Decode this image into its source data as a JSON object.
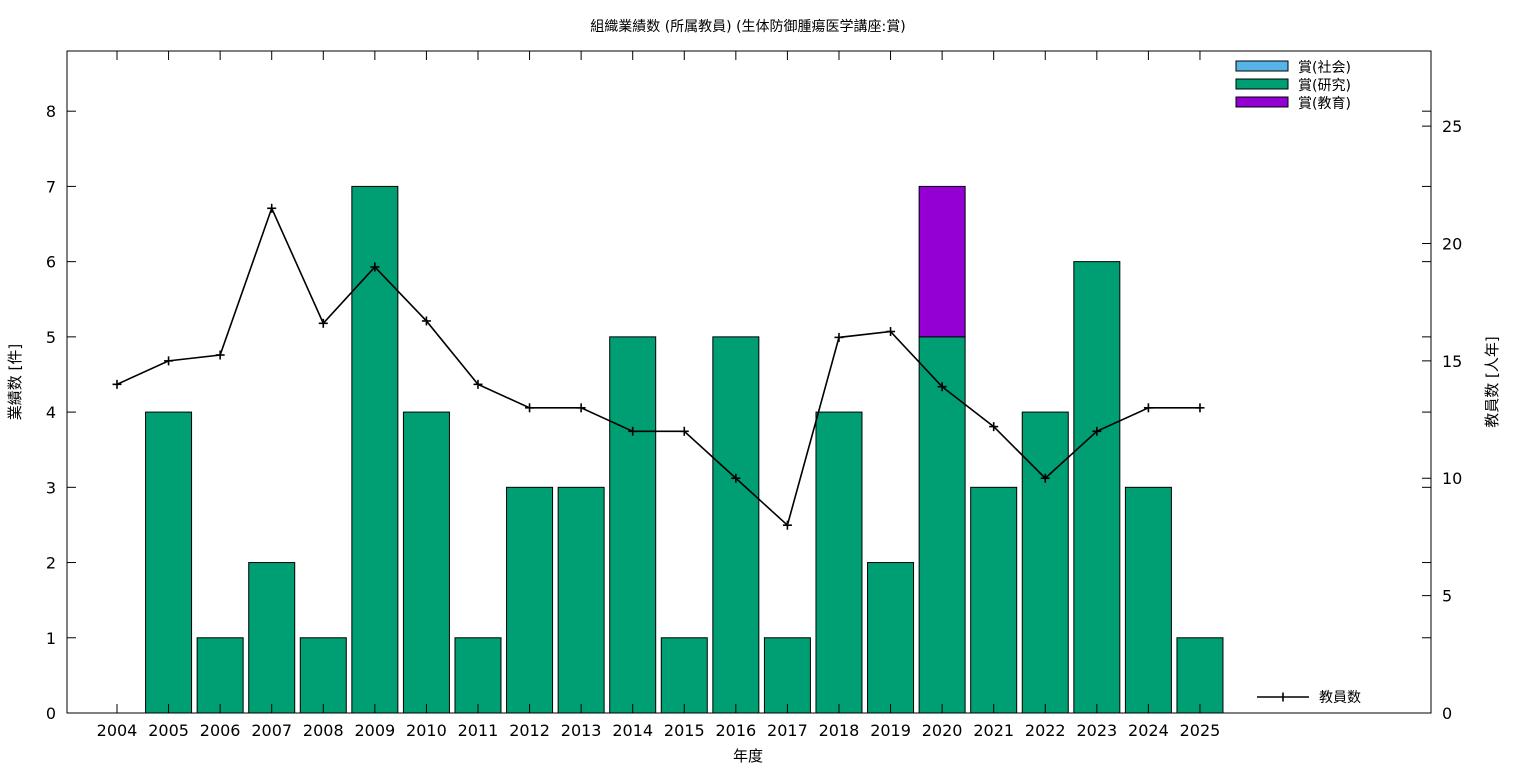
{
  "chart_data": {
    "type": "bar",
    "title": "組織業績数 (所属教員) (生体防御腫瘍医学講座:賞)",
    "xlabel": "年度",
    "ylabel": "業績数 [件]",
    "y2label": "教員数 [人年]",
    "categories": [
      "2004",
      "2005",
      "2006",
      "2007",
      "2008",
      "2009",
      "2010",
      "2011",
      "2012",
      "2013",
      "2014",
      "2015",
      "2016",
      "2017",
      "2018",
      "2019",
      "2020",
      "2021",
      "2022",
      "2023",
      "2024",
      "2025"
    ],
    "ylim": [
      0,
      8.8
    ],
    "y2lim": [
      0,
      28.2
    ],
    "yticks": [
      0,
      1,
      2,
      3,
      4,
      5,
      6,
      7,
      8
    ],
    "y2ticks": [
      0,
      5,
      10,
      15,
      20,
      25
    ],
    "stacked": true,
    "series": [
      {
        "name": "賞(社会)",
        "color": "#56b4e9",
        "values": [
          0,
          0,
          0,
          0,
          0,
          0,
          0,
          0,
          0,
          0,
          0,
          0,
          0,
          0,
          0,
          0,
          0,
          0,
          0,
          0,
          0,
          0
        ]
      },
      {
        "name": "賞(研究)",
        "color": "#009e73",
        "values": [
          0,
          4,
          1,
          2,
          1,
          7,
          4,
          1,
          3,
          3,
          5,
          1,
          5,
          1,
          4,
          2,
          5,
          3,
          4,
          6,
          3,
          1
        ]
      },
      {
        "name": "賞(教育)",
        "color": "#9400d3",
        "values": [
          0,
          0,
          0,
          0,
          0,
          0,
          0,
          0,
          0,
          0,
          0,
          0,
          0,
          0,
          0,
          0,
          2,
          0,
          0,
          0,
          0,
          0
        ]
      }
    ],
    "line_series": {
      "name": "教員数",
      "axis": "y2",
      "color": "#000000",
      "values": [
        14,
        15,
        15.25,
        21.5,
        16.6,
        19,
        16.7,
        14,
        13,
        13,
        12,
        12,
        10,
        8,
        16,
        16.25,
        13.9,
        12.2,
        10,
        12,
        13,
        13
      ]
    },
    "legend_position": "top-right",
    "grid": false
  }
}
